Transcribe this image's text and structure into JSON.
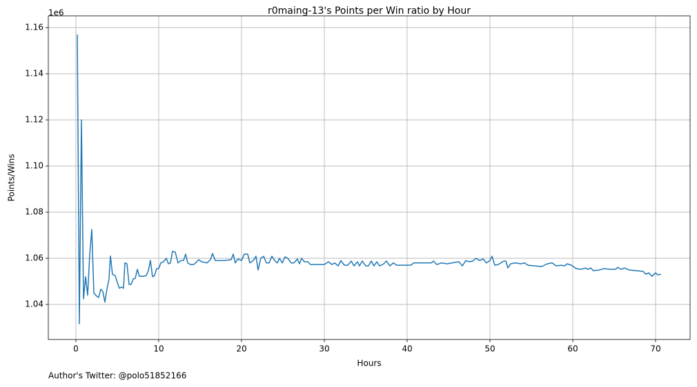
{
  "chart_data": {
    "type": "line",
    "title": "r0maing-13's Points per Win ratio by Hour",
    "xlabel": "Hours",
    "ylabel": "Points/Wins",
    "offset_text": "1e6",
    "footnote": "Author's Twitter: @polo51852166",
    "color": "#1f77b4",
    "grid": true,
    "xlim": [
      -3.33,
      74.17
    ],
    "ylim": [
      1.0248,
      1.1651
    ],
    "xticks": [
      0,
      10,
      20,
      30,
      40,
      50,
      60,
      70
    ],
    "yticks": [
      1.04,
      1.06,
      1.08,
      {
        "value": 1.1,
        "label": "1.10"
      },
      1.12,
      1.14,
      1.16
    ],
    "x": [
      0.17,
      0.42,
      0.67,
      0.92,
      1.17,
      1.42,
      1.67,
      1.92,
      2.17,
      2.5,
      2.75,
      3.0,
      3.25,
      3.5,
      3.75,
      4.0,
      4.17,
      4.42,
      4.75,
      5.0,
      5.25,
      5.5,
      5.75,
      5.92,
      6.17,
      6.42,
      6.67,
      6.92,
      7.17,
      7.42,
      7.67,
      8.08,
      8.5,
      8.75,
      9.0,
      9.25,
      9.5,
      9.75,
      10,
      10.25,
      10.58,
      10.92,
      11.17,
      11.42,
      11.67,
      12,
      12.33,
      12.67,
      13,
      13.25,
      13.5,
      13.83,
      14.25,
      14.83,
      15.17,
      15.83,
      16.25,
      16.5,
      16.83,
      17.92,
      18.75,
      19.0,
      19.25,
      19.58,
      20,
      20.33,
      20.75,
      21,
      21.42,
      21.75,
      22,
      22.33,
      22.67,
      23,
      23.33,
      23.67,
      24,
      24.33,
      24.58,
      24.92,
      25.25,
      25.58,
      26,
      26.33,
      26.75,
      27,
      27.25,
      27.58,
      28,
      28.33,
      30,
      30.5,
      30.92,
      31.25,
      31.67,
      32,
      32.42,
      32.83,
      33.25,
      33.58,
      34,
      34.25,
      34.58,
      35,
      35.33,
      35.67,
      36,
      36.33,
      36.67,
      37.17,
      37.5,
      37.92,
      38.33,
      38.75,
      40.42,
      40.83,
      42.92,
      43.17,
      43.58,
      44.17,
      44.83,
      45.42,
      46.25,
      46.67,
      47.08,
      47.5,
      47.92,
      48.33,
      48.75,
      49.17,
      49.58,
      50,
      50.25,
      50.58,
      51,
      51.67,
      51.92,
      52.17,
      52.5,
      53,
      53.75,
      54.17,
      54.58,
      55.42,
      56.25,
      56.92,
      57.5,
      58,
      58.58,
      59,
      59.33,
      59.83,
      60.42,
      61,
      61.5,
      61.83,
      62.17,
      62.5,
      63.17,
      63.75,
      64.58,
      65.17,
      65.42,
      65.83,
      66.25,
      66.83,
      68.5,
      68.83,
      69.17,
      69.58,
      70,
      70.25,
      70.67
    ],
    "values": [
      1.157,
      1.0316,
      1.12,
      1.0424,
      1.052,
      1.044,
      1.0615,
      1.0725,
      1.045,
      1.0436,
      1.043,
      1.0466,
      1.0457,
      1.041,
      1.0466,
      1.051,
      1.061,
      1.053,
      1.0525,
      1.0495,
      1.047,
      1.0475,
      1.047,
      1.058,
      1.0576,
      1.0487,
      1.0487,
      1.051,
      1.0513,
      1.0552,
      1.0522,
      1.0522,
      1.0525,
      1.0546,
      1.0591,
      1.052,
      1.0525,
      1.0555,
      1.0555,
      1.058,
      1.0585,
      1.06,
      1.0576,
      1.058,
      1.063,
      1.0627,
      1.058,
      1.059,
      1.059,
      1.0618,
      1.058,
      1.0573,
      1.0573,
      1.0594,
      1.0585,
      1.058,
      1.0594,
      1.0621,
      1.059,
      1.059,
      1.0594,
      1.0618,
      1.058,
      1.0597,
      1.059,
      1.0618,
      1.0618,
      1.058,
      1.059,
      1.0609,
      1.0549,
      1.06,
      1.0609,
      1.058,
      1.058,
      1.0609,
      1.059,
      1.058,
      1.06,
      1.058,
      1.0606,
      1.06,
      1.058,
      1.058,
      1.0597,
      1.0576,
      1.06,
      1.0585,
      1.0585,
      1.0573,
      1.0573,
      1.0585,
      1.0573,
      1.058,
      1.0567,
      1.059,
      1.057,
      1.057,
      1.0588,
      1.0567,
      1.0585,
      1.0567,
      1.0588,
      1.0567,
      1.0567,
      1.0588,
      1.0567,
      1.0585,
      1.0567,
      1.0576,
      1.0588,
      1.0567,
      1.058,
      1.057,
      1.057,
      1.058,
      1.058,
      1.0588,
      1.0573,
      1.058,
      1.0576,
      1.058,
      1.0585,
      1.0567,
      1.059,
      1.0585,
      1.0588,
      1.06,
      1.059,
      1.0597,
      1.058,
      1.059,
      1.0609,
      1.057,
      1.0573,
      1.0588,
      1.0588,
      1.0558,
      1.0576,
      1.058,
      1.0576,
      1.058,
      1.057,
      1.0567,
      1.0564,
      1.0576,
      1.058,
      1.0567,
      1.057,
      1.0567,
      1.0576,
      1.057,
      1.0555,
      1.0552,
      1.0558,
      1.0552,
      1.0558,
      1.0546,
      1.0549,
      1.0555,
      1.0552,
      1.0552,
      1.0561,
      1.0552,
      1.0558,
      1.0549,
      1.0543,
      1.0531,
      1.0537,
      1.0522,
      1.0537,
      1.0528,
      1.0531
    ]
  }
}
